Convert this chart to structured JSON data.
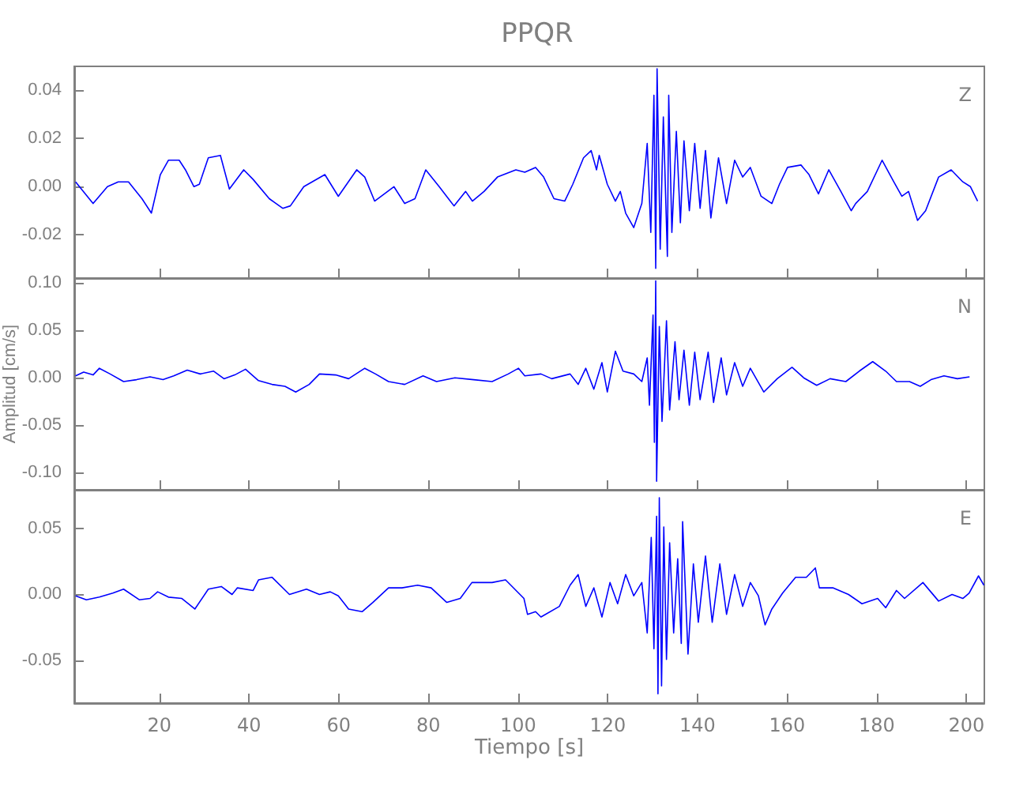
{
  "chart_data": [
    {
      "type": "line",
      "title": "PPQR",
      "xlim": [
        1,
        204
      ],
      "xticks": [
        20,
        40,
        60,
        80,
        100,
        120,
        140,
        160,
        180,
        200
      ],
      "ylim": [
        -0.038,
        0.05
      ],
      "yticks": [
        {
          "value": -0.02,
          "label": "-0.02"
        },
        {
          "value": 0,
          "label": "0.00"
        },
        {
          "value": 0.02,
          "label": "0.02"
        },
        {
          "value": 0.04,
          "label": "0.04"
        }
      ],
      "tick_labels": "y",
      "grid": false,
      "legend": false,
      "marker": "none",
      "series": [
        {
          "name": "Z",
          "color": "#0000ff",
          "x": [
            1.3,
            5.2,
            8.4,
            10.8,
            13.1,
            16.1,
            18.2,
            20.2,
            22,
            24.4,
            25.8,
            27.7,
            28.9,
            30.9,
            33.6,
            35.6,
            38.8,
            40.9,
            44.5,
            47.5,
            49.2,
            52.2,
            56.9,
            59.9,
            64,
            65.8,
            68,
            72.3,
            74.7,
            77,
            79.4,
            82.4,
            85.7,
            88.3,
            89.8,
            92.4,
            95.4,
            99.5,
            101.5,
            103.9,
            105.7,
            108,
            110.4,
            112.2,
            114.6,
            116.3,
            117.5,
            118.1,
            119.9,
            121.7,
            122.8,
            124,
            125.8,
            127.6,
            128.8,
            129.6,
            130.3,
            130.7,
            131.0,
            131.7,
            132.4,
            133.3,
            133.6,
            134.3,
            135.3,
            136.2,
            137,
            138.2,
            139.4,
            140.6,
            141.8,
            143,
            144.7,
            146.5,
            148.3,
            150.1,
            151.8,
            154.2,
            156.6,
            158.3,
            160.1,
            163.1,
            164.9,
            167,
            169.3,
            172,
            174.3,
            175.3,
            177.9,
            181.2,
            183.8,
            185.6,
            187.1,
            189.1,
            190.9,
            193.8,
            196.6,
            199.2,
            200.9,
            202.5
          ],
          "values": [
            0.002,
            -0.007,
            0.0,
            0.002,
            0.002,
            -0.005,
            -0.011,
            0.005,
            0.011,
            0.011,
            0.007,
            0.0,
            0.001,
            0.012,
            0.013,
            -0.001,
            0.007,
            0.003,
            -0.005,
            -0.009,
            -0.008,
            0.0,
            0.005,
            -0.004,
            0.007,
            0.004,
            -0.006,
            0.0,
            -0.007,
            -0.005,
            0.007,
            0.0,
            -0.008,
            -0.002,
            -0.006,
            -0.002,
            0.004,
            0.007,
            0.006,
            0.008,
            0.004,
            -0.005,
            -0.006,
            0.001,
            0.012,
            0.015,
            0.007,
            0.013,
            0.001,
            -0.006,
            -0.002,
            -0.011,
            -0.017,
            -0.007,
            0.018,
            -0.019,
            0.038,
            -0.034,
            0.049,
            -0.026,
            0.029,
            -0.029,
            0.038,
            -0.019,
            0.023,
            -0.015,
            0.019,
            -0.01,
            0.018,
            -0.009,
            0.015,
            -0.013,
            0.012,
            -0.007,
            0.011,
            0.004,
            0.008,
            -0.004,
            -0.007,
            0.001,
            0.008,
            0.009,
            0.005,
            -0.003,
            0.007,
            -0.002,
            -0.01,
            -0.007,
            -0.002,
            0.011,
            0.002,
            -0.004,
            -0.002,
            -0.014,
            -0.01,
            0.004,
            0.007,
            0.002,
            0.0,
            -0.006
          ]
        }
      ]
    },
    {
      "type": "line",
      "ylabel": "Amplitud [cm/s]",
      "xlim": [
        1,
        204
      ],
      "xticks": [
        20,
        40,
        60,
        80,
        100,
        120,
        140,
        160,
        180,
        200
      ],
      "ylim": [
        -0.118,
        0.105
      ],
      "yticks": [
        {
          "value": -0.1,
          "label": "-0.10"
        },
        {
          "value": -0.05,
          "label": "-0.05"
        },
        {
          "value": 0,
          "label": "0.00"
        },
        {
          "value": 0.05,
          "label": "0.05"
        },
        {
          "value": 0.1,
          "label": "0.10"
        }
      ],
      "tick_labels": "y",
      "grid": false,
      "legend": false,
      "marker": "none",
      "series": [
        {
          "name": "N",
          "color": "#0000ff",
          "x": [
            1.3,
            3.1,
            5.2,
            6.6,
            9,
            12,
            14.9,
            17.9,
            20.8,
            23.2,
            26.2,
            29.1,
            32.1,
            34.4,
            36.8,
            39.2,
            42.1,
            45.1,
            48,
            50.4,
            53.4,
            55.7,
            59.3,
            62.2,
            65.8,
            68.2,
            71.1,
            74.7,
            78.8,
            81.8,
            85.9,
            90.1,
            94.2,
            97.8,
            100.1,
            101.5,
            105.1,
            107.5,
            111.6,
            113.4,
            115.1,
            116.9,
            118.7,
            119.9,
            121.7,
            123.4,
            125.8,
            127.6,
            128.8,
            129.3,
            130.1,
            130.4,
            130.7,
            130.9,
            131.5,
            132.1,
            133.1,
            133.8,
            135,
            135.9,
            137,
            138.2,
            139.4,
            140.6,
            142.4,
            143.6,
            145.3,
            146.5,
            148.3,
            150.1,
            151.8,
            154.8,
            157.8,
            161.1,
            163.7,
            166.6,
            169.6,
            173.1,
            176.1,
            179.1,
            182,
            184.4,
            187.3,
            189.7,
            192.1,
            195,
            198,
            200.7
          ],
          "values": [
            0.002,
            0.006,
            0.003,
            0.01,
            0.004,
            -0.004,
            -0.002,
            0.001,
            -0.002,
            0.002,
            0.008,
            0.004,
            0.007,
            -0.001,
            0.003,
            0.009,
            -0.003,
            -0.007,
            -0.009,
            -0.015,
            -0.007,
            0.004,
            0.003,
            -0.001,
            0.01,
            0.004,
            -0.004,
            -0.007,
            0.002,
            -0.004,
            0.0,
            -0.002,
            -0.004,
            0.004,
            0.01,
            0.002,
            0.004,
            -0.001,
            0.004,
            -0.007,
            0.01,
            -0.012,
            0.016,
            -0.015,
            0.028,
            0.007,
            0.004,
            -0.004,
            0.021,
            -0.029,
            0.066,
            -0.068,
            0.102,
            -0.109,
            0.054,
            -0.046,
            0.06,
            -0.034,
            0.038,
            -0.023,
            0.029,
            -0.029,
            0.027,
            -0.023,
            0.027,
            -0.026,
            0.021,
            -0.018,
            0.016,
            -0.009,
            0.01,
            -0.015,
            -0.001,
            0.011,
            0.0,
            -0.008,
            -0.001,
            -0.004,
            0.007,
            0.017,
            0.007,
            -0.004,
            -0.004,
            -0.009,
            -0.002,
            0.002,
            -0.001,
            0.001
          ]
        }
      ]
    },
    {
      "type": "line",
      "xlabel": "Tiempo [s]",
      "xlim": [
        1,
        204
      ],
      "xticks": [
        20,
        40,
        60,
        80,
        100,
        120,
        140,
        160,
        180,
        200
      ],
      "ylim": [
        -0.082,
        0.079
      ],
      "yticks": [
        {
          "value": -0.05,
          "label": "-0.05"
        },
        {
          "value": 0,
          "label": "0.00"
        },
        {
          "value": 0.05,
          "label": "0.05"
        }
      ],
      "grid": false,
      "legend": false,
      "marker": "none",
      "series": [
        {
          "name": "E",
          "color": "#0000ff",
          "x": [
            1.3,
            3.7,
            6.6,
            9.6,
            12,
            15.5,
            17.9,
            19.6,
            22,
            25,
            27.9,
            30.9,
            33.8,
            36.2,
            37.4,
            40.9,
            42.1,
            45.1,
            49,
            52.8,
            55.7,
            58.1,
            59.9,
            62.2,
            65.2,
            67.6,
            71.1,
            74.1,
            77.6,
            80.6,
            84.1,
            87.1,
            89.7,
            94.2,
            97.2,
            101.3,
            102.1,
            103.9,
            105.1,
            109.2,
            111.6,
            113.4,
            115.1,
            116.9,
            118.7,
            120.5,
            122.2,
            124,
            125.8,
            127.6,
            128.8,
            129.7,
            130.3,
            130.9,
            131.2,
            131.5,
            132,
            132.5,
            133.1,
            133.8,
            134.7,
            135.6,
            136.4,
            136.7,
            137.9,
            139.1,
            140.2,
            141.8,
            143.3,
            145,
            146.5,
            148.3,
            150.1,
            151.8,
            153.6,
            155.1,
            156.6,
            159,
            161.9,
            164.3,
            166.3,
            167.2,
            170.2,
            173.7,
            176.7,
            180.2,
            182,
            184.4,
            186.2,
            190.3,
            193.8,
            196.8,
            199.2,
            200.6,
            202.7,
            203.9
          ],
          "values": [
            -0.001,
            -0.004,
            -0.002,
            0.001,
            0.004,
            -0.004,
            -0.003,
            0.002,
            -0.002,
            -0.003,
            -0.011,
            0.004,
            0.006,
            0.0,
            0.005,
            0.003,
            0.011,
            0.013,
            0.0,
            0.004,
            0.0,
            0.002,
            -0.001,
            -0.011,
            -0.013,
            -0.006,
            0.005,
            0.005,
            0.007,
            0.005,
            -0.006,
            -0.003,
            0.009,
            0.009,
            0.011,
            -0.003,
            -0.015,
            -0.013,
            -0.017,
            -0.009,
            0.007,
            0.015,
            -0.009,
            0.005,
            -0.017,
            0.009,
            -0.007,
            0.015,
            -0.001,
            0.009,
            -0.029,
            0.043,
            -0.041,
            0.059,
            -0.075,
            0.073,
            -0.069,
            0.051,
            -0.049,
            0.039,
            -0.029,
            0.027,
            -0.037,
            0.055,
            -0.045,
            0.023,
            -0.021,
            0.029,
            -0.021,
            0.023,
            -0.015,
            0.015,
            -0.009,
            0.009,
            -0.001,
            -0.023,
            -0.011,
            0.001,
            0.013,
            0.013,
            0.02,
            0.005,
            0.005,
            0.0,
            -0.007,
            -0.003,
            -0.01,
            0.003,
            -0.003,
            0.009,
            -0.005,
            0.0,
            -0.003,
            0.001,
            0.014,
            0.007
          ]
        }
      ]
    }
  ]
}
